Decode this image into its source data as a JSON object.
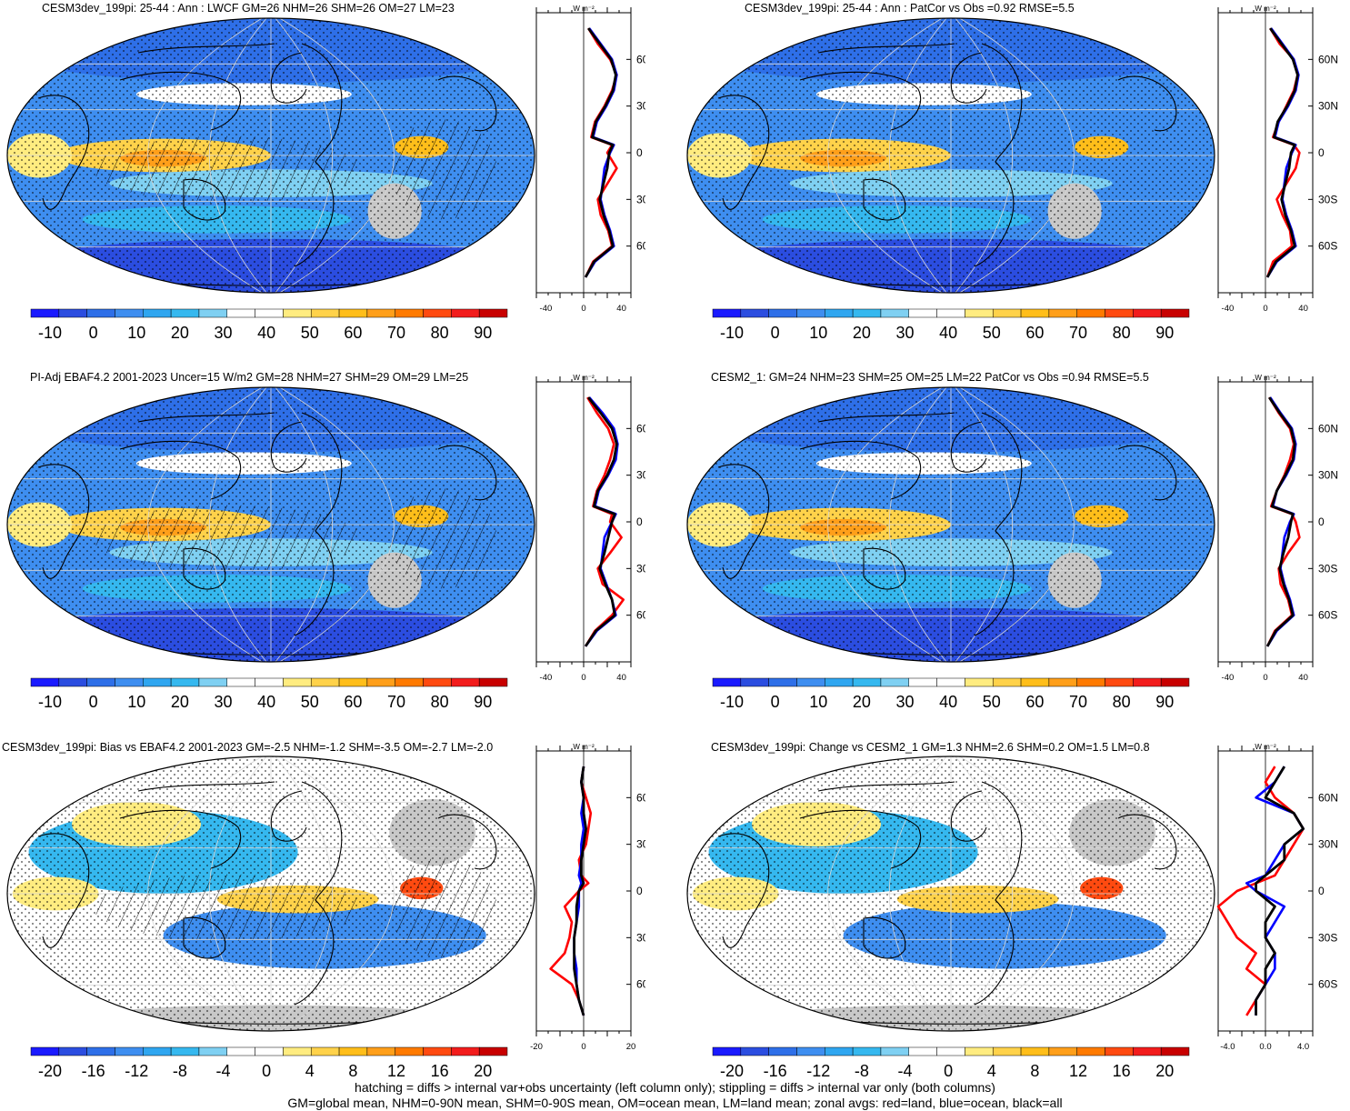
{
  "colors": {
    "palette_abs": [
      "#1a1aff",
      "#2b4de0",
      "#2e6fe8",
      "#3e8ef0",
      "#2fa6f0",
      "#35b8ef",
      "#7fd0f2",
      "#ffffff",
      "#ffffff",
      "#ffec80",
      "#ffd24a",
      "#ffbe1a",
      "#ff9f1a",
      "#ff7a00",
      "#ff4a10",
      "#f21c1c",
      "#c80000"
    ],
    "palette_diff": [
      "#1a1aff",
      "#2b4de0",
      "#2e6fe8",
      "#3e8ef0",
      "#2fa6f0",
      "#35b8ef",
      "#7fd0f2",
      "#ffffff",
      "#ffffff",
      "#ffec80",
      "#ffd24a",
      "#ffbe1a",
      "#ff9f1a",
      "#ff7a00",
      "#ff4a10",
      "#f21c1c",
      "#c80000"
    ],
    "land_series": "#ff0000",
    "ocean_series": "#0000ff",
    "all_series": "#000000",
    "missing": "#c8c8c8"
  },
  "panels": [
    {
      "title": "CESM3dev_199pi: 25-44 : Ann : LWCF GM=26 NHM=26 SHM=26 OM=27 LM=23",
      "colorbar_labels": [
        "-10",
        "0",
        "10",
        "20",
        "30",
        "40",
        "50",
        "60",
        "70",
        "80",
        "90"
      ],
      "zonal_xticks": [
        "-40",
        "0",
        "40"
      ],
      "zonal_xrange": [
        -50,
        50
      ],
      "base": "abs",
      "hatch": true
    },
    {
      "title": "CESM3dev_199pi: 25-44 : Ann : PatCor vs Obs =0.92 RMSE=5.5",
      "colorbar_labels": [
        "-10",
        "0",
        "10",
        "20",
        "30",
        "40",
        "50",
        "60",
        "70",
        "80",
        "90"
      ],
      "zonal_xticks": [
        "-40",
        "0",
        "40"
      ],
      "zonal_xrange": [
        -50,
        50
      ],
      "base": "abs",
      "hatch": false
    },
    {
      "title": "PI-Adj EBAF4.2 2001-2023 Uncer=15 W/m2 GM=28 NHM=27 SHM=29 OM=29 LM=25",
      "colorbar_labels": [
        "-10",
        "0",
        "10",
        "20",
        "30",
        "40",
        "50",
        "60",
        "70",
        "80",
        "90"
      ],
      "zonal_xticks": [
        "-40",
        "0",
        "40"
      ],
      "zonal_xrange": [
        -50,
        50
      ],
      "base": "abs",
      "hatch": true
    },
    {
      "title": "CESM2_1: GM=24 NHM=23 SHM=25 OM=25 LM=22 PatCor vs Obs =0.94 RMSE=5.5",
      "colorbar_labels": [
        "-10",
        "0",
        "10",
        "20",
        "30",
        "40",
        "50",
        "60",
        "70",
        "80",
        "90"
      ],
      "zonal_xticks": [
        "-40",
        "0",
        "40"
      ],
      "zonal_xrange": [
        -50,
        50
      ],
      "base": "abs",
      "hatch": false
    },
    {
      "title": "CESM3dev_199pi: Bias vs EBAF4.2 2001-2023 GM=-2.5 NHM=-1.2 SHM=-3.5 OM=-2.7 LM=-2.0",
      "colorbar_labels": [
        "-20",
        "-16",
        "-12",
        "-8",
        "-4",
        "0",
        "4",
        "8",
        "12",
        "16",
        "20"
      ],
      "zonal_xticks": [
        "-20",
        "0",
        "20"
      ],
      "zonal_xrange": [
        -20,
        20
      ],
      "base": "diff",
      "hatch": true
    },
    {
      "title": "CESM3dev_199pi: Change vs CESM2_1 GM=1.3 NHM=2.6 SHM=0.2 OM=1.5 LM=0.8",
      "colorbar_labels": [
        "-20",
        "-16",
        "-12",
        "-8",
        "-4",
        "0",
        "4",
        "8",
        "12",
        "16",
        "20"
      ],
      "zonal_xticks": [
        "-4.0",
        "0.0",
        "4.0"
      ],
      "zonal_xrange": [
        -5,
        5
      ],
      "base": "diff",
      "hatch": false
    }
  ],
  "zonal_unit": "W m⁻²",
  "lat_ticks": [
    "60N",
    "30N",
    "0",
    "30S",
    "60S"
  ],
  "chart_data": [
    {
      "type": "heatmap",
      "title": "CESM3dev_199pi: 25-44 : Ann : LWCF GM=26 NHM=26 SHM=26 OM=27 LM=23",
      "zonal_profile": {
        "lat": [
          -80,
          -70,
          -60,
          -50,
          -40,
          -30,
          -20,
          -10,
          0,
          5,
          10,
          20,
          30,
          40,
          50,
          60,
          70,
          80
        ],
        "land": [
          2,
          10,
          30,
          26,
          18,
          15,
          25,
          35,
          25,
          30,
          8,
          12,
          22,
          30,
          35,
          28,
          15,
          5
        ],
        "ocean": [
          2,
          12,
          32,
          28,
          22,
          18,
          20,
          22,
          28,
          32,
          10,
          14,
          24,
          32,
          35,
          30,
          18,
          6
        ],
        "all": [
          2,
          11,
          31,
          27,
          21,
          17,
          21,
          25,
          27,
          31,
          9,
          13,
          23,
          31,
          34,
          29,
          17,
          5
        ]
      }
    },
    {
      "type": "heatmap",
      "title": "CESM3dev_199pi: 25-44 : Ann : PatCor vs Obs =0.92 RMSE=5.5",
      "zonal_profile": {
        "lat": [
          -80,
          -70,
          -60,
          -50,
          -40,
          -30,
          -20,
          -10,
          0,
          5,
          10,
          20,
          30,
          40,
          50,
          60,
          70,
          80
        ],
        "land": [
          2,
          8,
          28,
          26,
          18,
          12,
          22,
          32,
          36,
          30,
          8,
          14,
          22,
          30,
          34,
          30,
          15,
          5
        ],
        "ocean": [
          2,
          12,
          32,
          28,
          22,
          18,
          20,
          22,
          28,
          32,
          10,
          14,
          24,
          32,
          35,
          30,
          18,
          6
        ],
        "all": [
          2,
          11,
          31,
          27,
          21,
          17,
          21,
          25,
          27,
          31,
          9,
          13,
          23,
          31,
          34,
          29,
          17,
          5
        ]
      }
    },
    {
      "type": "heatmap",
      "title": "PI-Adj EBAF4.2 2001-2023 Uncer=15 W/m2 GM=28 NHM=27 SHM=29 OM=29 LM=25",
      "zonal_profile": {
        "lat": [
          -80,
          -70,
          -60,
          -50,
          -40,
          -30,
          -20,
          -10,
          0,
          5,
          10,
          20,
          30,
          40,
          50,
          60,
          70,
          80
        ],
        "land": [
          2,
          12,
          30,
          42,
          20,
          15,
          28,
          40,
          28,
          30,
          10,
          14,
          22,
          28,
          32,
          26,
          14,
          4
        ],
        "ocean": [
          2,
          14,
          34,
          30,
          24,
          18,
          20,
          22,
          30,
          34,
          12,
          16,
          26,
          34,
          36,
          32,
          20,
          6
        ],
        "all": [
          2,
          13,
          33,
          30,
          23,
          17,
          22,
          26,
          30,
          33,
          11,
          15,
          25,
          32,
          35,
          30,
          18,
          5
        ]
      }
    },
    {
      "type": "heatmap",
      "title": "CESM2_1: GM=24 NHM=23 SHM=25 OM=25 LM=22 PatCor vs Obs =0.94 RMSE=5.5",
      "zonal_profile": {
        "lat": [
          -80,
          -70,
          -60,
          -50,
          -40,
          -30,
          -20,
          -10,
          0,
          5,
          10,
          20,
          30,
          40,
          50,
          60,
          70,
          80
        ],
        "land": [
          2,
          10,
          28,
          24,
          16,
          14,
          24,
          36,
          32,
          28,
          6,
          12,
          20,
          26,
          30,
          26,
          14,
          4
        ],
        "ocean": [
          2,
          12,
          30,
          26,
          20,
          16,
          18,
          20,
          26,
          30,
          8,
          12,
          22,
          30,
          32,
          28,
          16,
          5
        ],
        "all": [
          2,
          11,
          29,
          25,
          19,
          15,
          19,
          24,
          27,
          29,
          7,
          12,
          21,
          29,
          31,
          27,
          15,
          4
        ]
      }
    },
    {
      "type": "heatmap",
      "title": "CESM3dev_199pi: Bias vs EBAF4.2 2001-2023 GM=-2.5 NHM=-1.2 SHM=-3.5 OM=-2.7 LM=-2.0",
      "zonal_profile": {
        "lat": [
          -80,
          -70,
          -60,
          -50,
          -40,
          -30,
          -20,
          -10,
          0,
          5,
          10,
          20,
          30,
          40,
          50,
          60,
          70,
          80
        ],
        "land": [
          0,
          -2,
          -5,
          -14,
          -8,
          -6,
          -5,
          -8,
          -2,
          2,
          -1,
          -2,
          1,
          2,
          3,
          1,
          -1,
          0
        ],
        "ocean": [
          0,
          -2,
          -3,
          -3,
          -4,
          -4,
          -3,
          -2,
          -2,
          -1,
          -2,
          -1,
          -1,
          0,
          -1,
          0,
          -1,
          0
        ],
        "all": [
          0,
          -2,
          -3,
          -4,
          -4,
          -4,
          -3,
          -3,
          -2,
          0,
          -1,
          -1,
          0,
          1,
          0,
          0,
          -1,
          0
        ]
      }
    },
    {
      "type": "heatmap",
      "title": "CESM3dev_199pi: Change vs CESM2_1 GM=1.3 NHM=2.6 SHM=0.2 OM=1.5 LM=0.8",
      "zonal_profile": {
        "lat": [
          -80,
          -70,
          -60,
          -50,
          -40,
          -30,
          -20,
          -10,
          0,
          5,
          10,
          20,
          30,
          40,
          50,
          60,
          70,
          80
        ],
        "land": [
          -2,
          -1,
          0,
          -2,
          -1,
          -3,
          -4,
          -5,
          -3,
          -1,
          1,
          2,
          3,
          4,
          3,
          1,
          0,
          1
        ],
        "ocean": [
          -1,
          -1,
          0,
          1,
          1,
          0,
          1,
          2,
          -1,
          -2,
          0,
          1,
          2,
          4,
          3,
          -1,
          1,
          2
        ],
        "all": [
          -1,
          -1,
          0,
          0,
          1,
          0,
          0,
          1,
          -1,
          -1,
          0,
          2,
          2,
          4,
          3,
          0,
          1,
          2
        ]
      }
    }
  ],
  "footnote": [
    "hatching = diffs > internal var+obs uncertainty (left column only); stippling = diffs > internal var only (both columns)",
    "GM=global mean, NHM=0-90N mean, SHM=0-90S mean, OM=ocean mean, LM=land mean; zonal avgs: red=land, blue=ocean, black=all"
  ]
}
